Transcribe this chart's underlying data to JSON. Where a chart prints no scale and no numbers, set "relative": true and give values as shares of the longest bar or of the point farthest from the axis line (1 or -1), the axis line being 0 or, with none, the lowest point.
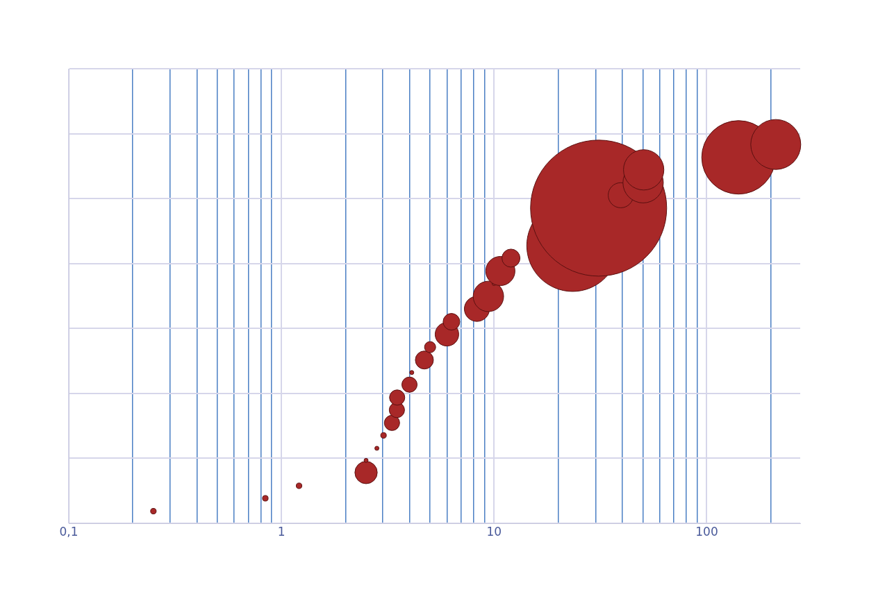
{
  "chart_data": {
    "type": "bubble",
    "relative": true,
    "log": "x",
    "grid": true,
    "legend": false,
    "xlim": [
      0.1,
      275
    ],
    "xticks": [
      {
        "value": 0.1,
        "label": "0,1"
      },
      {
        "value": 0.2,
        "label": null
      },
      {
        "value": 0.3,
        "label": null
      },
      {
        "value": 0.4,
        "label": null
      },
      {
        "value": 0.5,
        "label": null
      },
      {
        "value": 0.6,
        "label": null
      },
      {
        "value": 0.7,
        "label": null
      },
      {
        "value": 0.8,
        "label": null
      },
      {
        "value": 0.9,
        "label": null
      },
      1,
      {
        "value": 2,
        "label": null
      },
      {
        "value": 3,
        "label": null
      },
      {
        "value": 4,
        "label": null
      },
      {
        "value": 5,
        "label": null
      },
      {
        "value": 6,
        "label": null
      },
      {
        "value": 7,
        "label": null
      },
      {
        "value": 8,
        "label": null
      },
      {
        "value": 9,
        "label": null
      },
      10,
      {
        "value": 20,
        "label": null
      },
      {
        "value": 30,
        "label": null
      },
      {
        "value": 40,
        "label": null
      },
      {
        "value": 50,
        "label": null
      },
      {
        "value": 60,
        "label": null
      },
      {
        "value": 70,
        "label": null
      },
      {
        "value": 80,
        "label": null
      },
      {
        "value": 90,
        "label": null
      },
      100,
      {
        "value": 200,
        "label": null
      }
    ],
    "series": [
      {
        "color": "#a82828",
        "x": [
          0.25,
          0.84,
          1.21,
          2.5,
          2.5,
          2.81,
          3.02,
          3.31,
          3.49,
          3.5,
          4.0,
          4.1,
          4.7,
          5.0,
          6.0,
          6.3,
          8.3,
          9.4,
          10,
          10.7,
          12,
          23.4,
          31,
          39.4,
          50.2,
          50.5,
          141,
          211
        ],
        "values": [
          0.032,
          0.066,
          0.099,
          0.134,
          0.166,
          0.198,
          0.232,
          0.265,
          0.299,
          0.332,
          0.366,
          0.398,
          0.431,
          0.465,
          0.499,
          0.532,
          0.566,
          0.599,
          0.633,
          0.666,
          0.7,
          0.733,
          0.832,
          0.866,
          0.899,
          0.933,
          0.966,
          1
        ],
        "sizes": [
          0.0017,
          0.0017,
          0.0017,
          0.027,
          0.0009,
          0.0009,
          0.0017,
          0.0126,
          0.0126,
          0.0126,
          0.0126,
          0.0009,
          0.0176,
          0.0067,
          0.03,
          0.015,
          0.034,
          0.05,
          0.0009,
          0.046,
          0.0176,
          0.454,
          1,
          0.034,
          0.088,
          0.088,
          0.292,
          0.135
        ]
      }
    ]
  }
}
